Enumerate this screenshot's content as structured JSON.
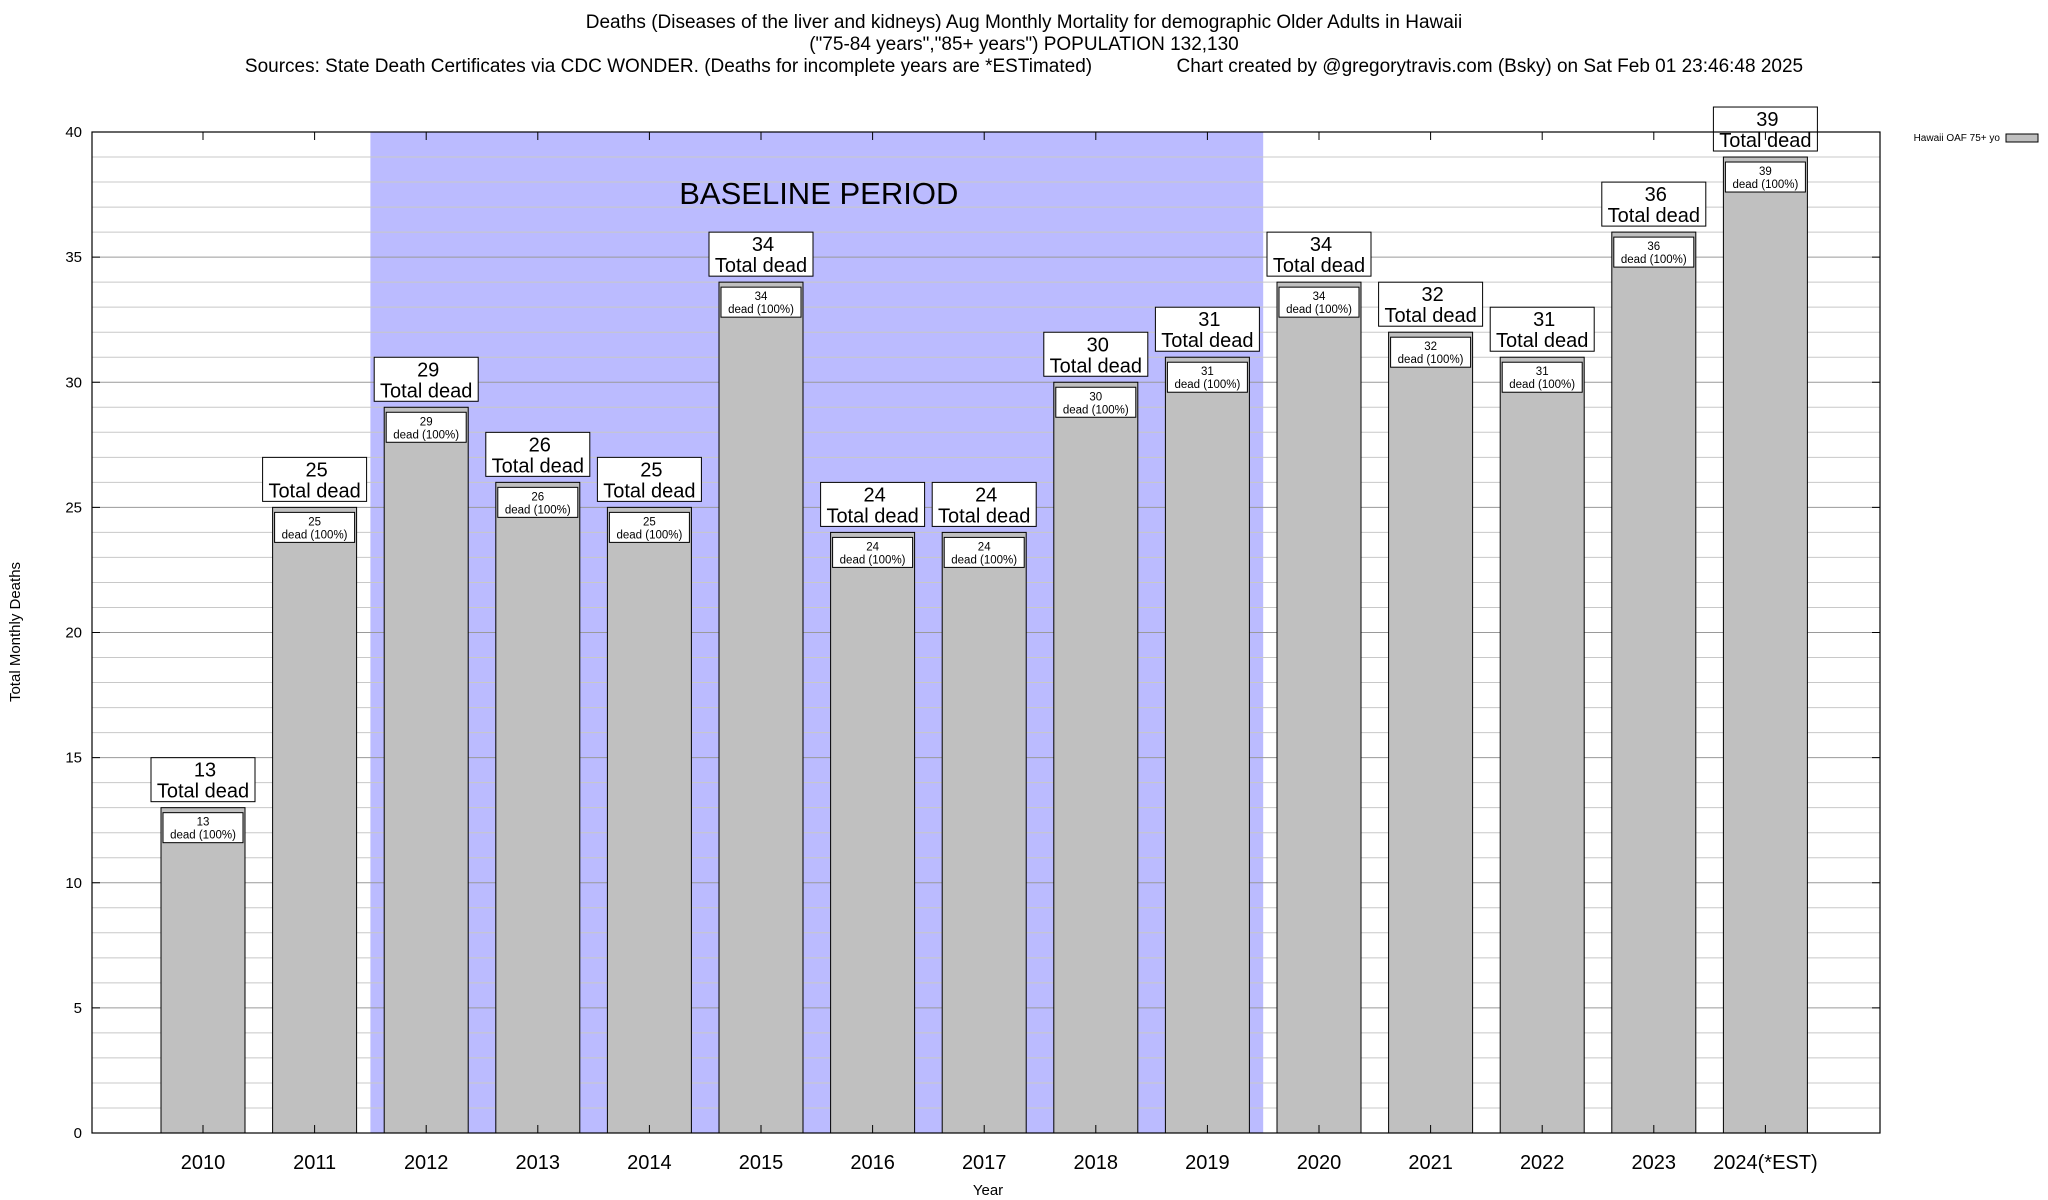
{
  "title": {
    "line1": "Deaths (Diseases of the liver and kidneys) Aug Monthly Mortality for demographic Older Adults in Hawaii",
    "line2": "(\"75-84 years\",\"85+ years\") POPULATION 132,130",
    "line3": "Sources: State Death Certificates via CDC WONDER. (Deaths for incomplete years are *ESTimated)                Chart created by @gregorytravis.com (Bsky) on Sat Feb 01 23:46:48 2025"
  },
  "chart_data": {
    "type": "bar",
    "categories": [
      "2010",
      "2011",
      "2012",
      "2013",
      "2014",
      "2015",
      "2016",
      "2017",
      "2018",
      "2019",
      "2020",
      "2021",
      "2022",
      "2023",
      "2024(*EST)"
    ],
    "series": [
      {
        "name": "Hawaii OAF 75+ yo",
        "values": [
          13,
          25,
          29,
          26,
          25,
          34,
          24,
          24,
          30,
          31,
          34,
          32,
          31,
          36,
          39
        ]
      }
    ],
    "xlabel": "Year",
    "ylabel": "Total Monthly Deaths",
    "ylim": [
      0,
      40
    ],
    "yticks": [
      0,
      5,
      10,
      15,
      20,
      25,
      30,
      35,
      40
    ],
    "grid": true,
    "legend_position": "top-right",
    "bar_color": "#c0c0c0",
    "baseline_color": "#bbbbff",
    "baseline_label": "BASELINE PERIOD",
    "baseline_range": [
      "2012",
      "2019"
    ],
    "total_label_suffix": "Total dead",
    "inner_label_suffix": "dead (100%)"
  }
}
